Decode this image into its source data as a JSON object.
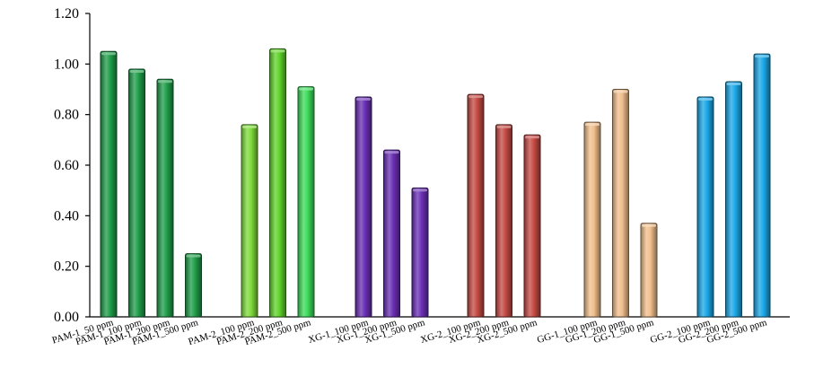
{
  "chart_data": {
    "type": "bar",
    "title": "",
    "xlabel": "",
    "ylabel": "",
    "ylim": [
      0,
      1.2
    ],
    "yticks": [
      "0.00",
      "0.20",
      "0.40",
      "0.60",
      "0.80",
      "1.00",
      "1.20"
    ],
    "grid": false,
    "groups": [
      {
        "color": "#1f9e4a",
        "bars": [
          {
            "label": "PAM-1_50 ppm",
            "value": 1.05
          },
          {
            "label": "PAM-1_100 ppm",
            "value": 0.98
          },
          {
            "label": "PAM-1_200 ppm",
            "value": 0.94
          },
          {
            "label": "PAM-1_500 ppm",
            "value": 0.25
          }
        ]
      },
      {
        "color": "#7fdc3a",
        "colors": [
          "#7fdc3a",
          "#5fd42a",
          "#3ddc5a"
        ],
        "bars": [
          {
            "label": "PAM-2_100 ppm",
            "value": 0.76
          },
          {
            "label": "PAM-2_200 ppm",
            "value": 1.06
          },
          {
            "label": "PAM-2_500 ppm",
            "value": 0.91
          }
        ]
      },
      {
        "color": "#6a2fb5",
        "bars": [
          {
            "label": "XG-1_100 ppm",
            "value": 0.87
          },
          {
            "label": "XG-1_200 ppm",
            "value": 0.66
          },
          {
            "label": "XG-1_500 ppm",
            "value": 0.51
          }
        ]
      },
      {
        "color": "#c64a44",
        "bars": [
          {
            "label": "XG-2_100 ppm",
            "value": 0.88
          },
          {
            "label": "XG-2_200 ppm",
            "value": 0.76
          },
          {
            "label": "XG-2_500 ppm",
            "value": 0.72
          }
        ]
      },
      {
        "color": "#f2bf8c",
        "bars": [
          {
            "label": "GG-1_100 ppm",
            "value": 0.77
          },
          {
            "label": "GG-1_200 ppm",
            "value": 0.9
          },
          {
            "label": "GG-1_500 ppm",
            "value": 0.37
          }
        ]
      },
      {
        "color": "#1aa8e8",
        "bars": [
          {
            "label": "GG-2_100 ppm",
            "value": 0.87
          },
          {
            "label": "GG-2_200 ppm",
            "value": 0.93
          },
          {
            "label": "GG-2_500 ppm",
            "value": 1.04
          }
        ]
      }
    ]
  }
}
